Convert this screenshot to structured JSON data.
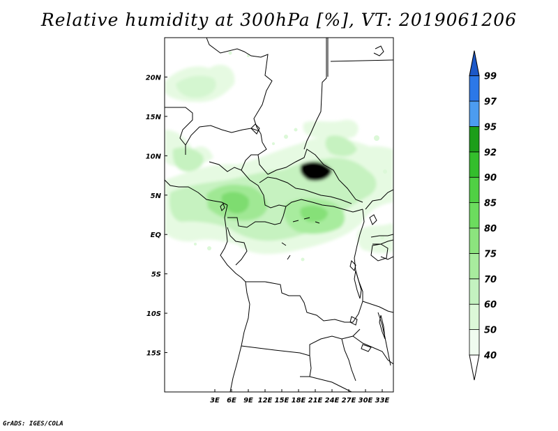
{
  "title": "Relative humidity at 300hPa [%], VT: 2019061206",
  "credit": "GrADS: IGES/COLA",
  "map": {
    "lon_range": [
      -6,
      35
    ],
    "lat_range": [
      -20,
      25
    ],
    "lon_ticks": [
      "3E",
      "6E",
      "9E",
      "12E",
      "15E",
      "18E",
      "21E",
      "24E",
      "27E",
      "30E",
      "33E"
    ],
    "lat_ticks": [
      "20N",
      "15N",
      "10N",
      "5N",
      "EQ",
      "5S",
      "10S",
      "15S"
    ]
  },
  "colorbar": {
    "levels": [
      "40",
      "50",
      "60",
      "70",
      "75",
      "80",
      "85",
      "90",
      "92",
      "95",
      "97",
      "99"
    ],
    "colors": [
      "#f0fcf0",
      "#dcf8d8",
      "#c4f2c0",
      "#a8ec9e",
      "#8ce47e",
      "#6cdc5e",
      "#50d044",
      "#34be2c",
      "#1c9e1a",
      "#4c9cf0",
      "#2c78e8",
      "#1c58c8"
    ],
    "below_color": "#ffffff",
    "above_color": "#1c58c8"
  }
}
